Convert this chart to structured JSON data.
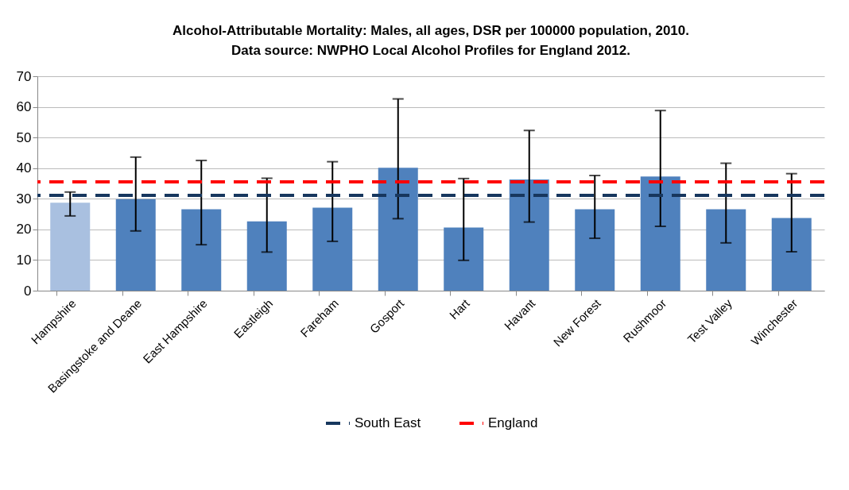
{
  "chart_data": {
    "type": "bar",
    "title": "Alcohol-Attributable Mortality: Males, all ages, DSR per 100000 population, 2010.",
    "subtitle": "Data source: NWPHO Local Alcohol Profiles for England 2012.",
    "categories": [
      "Hampshire",
      "Basingstoke and Deane",
      "East Hampshire",
      "Eastleigh",
      "Fareham",
      "Gosport",
      "Hart",
      "Havant",
      "New Forest",
      "Rushmoor",
      "Test Valley",
      "Winchester"
    ],
    "values": [
      28.7,
      29.9,
      26.6,
      22.6,
      27.1,
      40.1,
      20.6,
      36.3,
      26.6,
      37.3,
      26.6,
      23.7
    ],
    "colors": [
      "#a9c0e0",
      "#4f81bd",
      "#4f81bd",
      "#4f81bd",
      "#4f81bd",
      "#4f81bd",
      "#4f81bd",
      "#4f81bd",
      "#4f81bd",
      "#4f81bd",
      "#4f81bd",
      "#4f81bd"
    ],
    "errors": [
      [
        24.4,
        32.2
      ],
      [
        19.5,
        43.6
      ],
      [
        15.0,
        42.5
      ],
      [
        12.6,
        36.7
      ],
      [
        16.1,
        42.1
      ],
      [
        23.5,
        62.6
      ],
      [
        9.9,
        36.6
      ],
      [
        22.4,
        52.3
      ],
      [
        17.1,
        37.6
      ],
      [
        21.0,
        58.8
      ],
      [
        15.6,
        41.6
      ],
      [
        12.7,
        38.2
      ]
    ],
    "ylim": [
      0,
      70
    ],
    "yticks": [
      0,
      10,
      20,
      30,
      40,
      50,
      60,
      70
    ],
    "grid": "y",
    "legend": "bottom",
    "ref_lines": [
      {
        "axis": "y",
        "value": 31.1,
        "label": "South East",
        "color": "#17375e",
        "line_style": "dashed"
      },
      {
        "axis": "y",
        "value": 35.5,
        "label": "England",
        "color": "#ff0000",
        "line_style": "dashed"
      }
    ]
  }
}
